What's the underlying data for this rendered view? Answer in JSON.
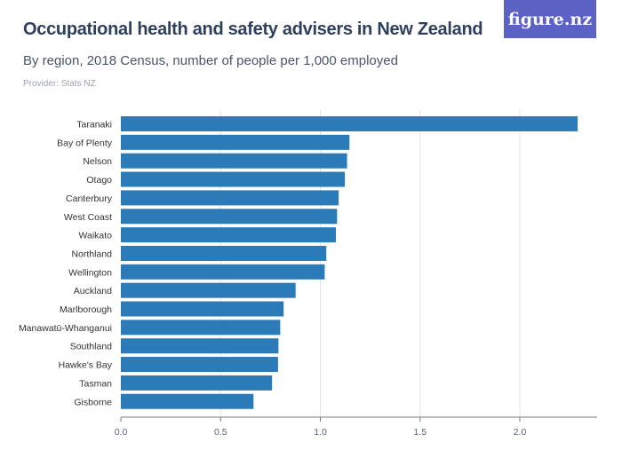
{
  "header": {
    "title": "Occupational health and safety advisers in New Zealand",
    "subtitle": "By region, 2018 Census, number of people per 1,000 employed",
    "provider": "Provider: Stats NZ",
    "logo": "figure.nz"
  },
  "chart_data": {
    "type": "bar",
    "orientation": "horizontal",
    "title": "Occupational health and safety advisers in New Zealand",
    "xlabel": "",
    "ylabel": "",
    "xlim": [
      0,
      2.35
    ],
    "xticks": [
      "0.0",
      "0.5",
      "1.0",
      "1.5",
      "2.0"
    ],
    "grid": true,
    "bar_color": "#2b7bb9",
    "categories": [
      "Taranaki",
      "Bay of Plenty",
      "Nelson",
      "Otago",
      "Canterbury",
      "West Coast",
      "Waikato",
      "Northland",
      "Wellington",
      "Auckland",
      "Marlborough",
      "Manawatū-Whanganui",
      "Southland",
      "Hawke's Bay",
      "Tasman",
      "Gisborne"
    ],
    "values": [
      2.29,
      1.146,
      1.134,
      1.123,
      1.092,
      1.084,
      1.078,
      1.03,
      1.022,
      0.876,
      0.816,
      0.799,
      0.79,
      0.788,
      0.758,
      0.665
    ]
  }
}
